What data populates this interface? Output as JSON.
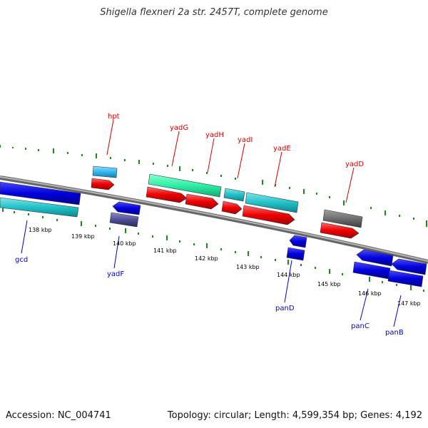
{
  "title": "Shigella flexneri 2a str. 2457T, complete genome",
  "footer": {
    "accession": "Accession: NC_004741",
    "summary": "Topology: circular; Length: 4,599,354 bp; Genes: 4,192"
  },
  "colors": {
    "backbone": "#8c8c8c",
    "top_label": "#d40000",
    "bottom_label": "#0000cc",
    "tick": "#1a8c1a"
  },
  "axis_labels": [
    "138 kbp",
    "139 kbp",
    "140 kbp",
    "141 kbp",
    "142 kbp",
    "143 kbp",
    "144 kbp",
    "145 kbp",
    "146 kbp",
    "147 kbp"
  ],
  "genes": {
    "hpt": "hpt",
    "yadG": "yadG",
    "yadH": "yadH",
    "yadI": "yadI",
    "yadE": "yadE",
    "yadD": "yadD",
    "gcd": "gcd",
    "yadF": "yadF",
    "panD": "panD",
    "panC": "panC",
    "panB": "panB"
  }
}
